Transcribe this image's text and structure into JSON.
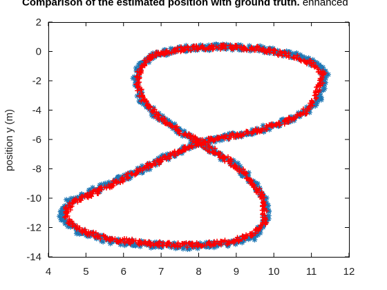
{
  "chart_data": {
    "type": "scatter",
    "title_bold": "Comparison of the estimated position with ground truth.",
    "title_normal": " enhanced",
    "xlabel": "",
    "ylabel": "position y (m)",
    "xlim": [
      4,
      12
    ],
    "ylim": [
      -14,
      2
    ],
    "xticks": [
      "4",
      "5",
      "6",
      "7",
      "8",
      "9",
      "10",
      "11",
      "12"
    ],
    "yticks": [
      "2",
      "0",
      "-2",
      "-4",
      "-6",
      "-8",
      "-10",
      "-12",
      "-14"
    ],
    "grid": false,
    "series": [
      {
        "color": "#1f77b4",
        "marker": "star",
        "points": [
          [
            8.0,
            -6.2
          ],
          [
            8.6,
            -5.9
          ],
          [
            9.4,
            -5.5
          ],
          [
            10.2,
            -4.9
          ],
          [
            10.8,
            -4.2
          ],
          [
            11.2,
            -3.2
          ],
          [
            11.4,
            -1.6
          ],
          [
            11.2,
            -0.9
          ],
          [
            10.6,
            -0.3
          ],
          [
            9.6,
            0.2
          ],
          [
            8.6,
            0.3
          ],
          [
            7.6,
            0.2
          ],
          [
            6.8,
            -0.2
          ],
          [
            6.4,
            -1.0
          ],
          [
            6.3,
            -2.2
          ],
          [
            6.5,
            -3.4
          ],
          [
            7.0,
            -4.6
          ],
          [
            7.6,
            -5.6
          ],
          [
            8.0,
            -6.2
          ],
          [
            8.4,
            -6.8
          ],
          [
            9.0,
            -7.8
          ],
          [
            9.5,
            -9.0
          ],
          [
            9.8,
            -10.3
          ],
          [
            9.8,
            -11.6
          ],
          [
            9.5,
            -12.6
          ],
          [
            8.8,
            -13.1
          ],
          [
            7.8,
            -13.3
          ],
          [
            6.8,
            -13.2
          ],
          [
            5.6,
            -12.9
          ],
          [
            4.8,
            -12.3
          ],
          [
            4.4,
            -11.5
          ],
          [
            4.3,
            -10.9
          ],
          [
            4.6,
            -10.2
          ],
          [
            5.4,
            -9.3
          ],
          [
            6.6,
            -7.9
          ],
          [
            7.4,
            -6.9
          ],
          [
            8.0,
            -6.2
          ]
        ]
      },
      {
        "color": "#ff0000",
        "marker": "plus",
        "points": [
          [
            8.0,
            -6.2
          ],
          [
            8.6,
            -5.9
          ],
          [
            9.4,
            -5.5
          ],
          [
            10.2,
            -4.9
          ],
          [
            10.8,
            -4.2
          ],
          [
            11.1,
            -3.2
          ],
          [
            11.3,
            -1.6
          ],
          [
            11.1,
            -0.9
          ],
          [
            10.5,
            -0.3
          ],
          [
            9.6,
            0.2
          ],
          [
            8.6,
            0.3
          ],
          [
            7.6,
            0.2
          ],
          [
            6.8,
            -0.2
          ],
          [
            6.45,
            -1.0
          ],
          [
            6.35,
            -2.2
          ],
          [
            6.55,
            -3.4
          ],
          [
            7.0,
            -4.6
          ],
          [
            7.6,
            -5.6
          ],
          [
            8.0,
            -6.2
          ],
          [
            8.4,
            -6.8
          ],
          [
            9.0,
            -7.8
          ],
          [
            9.45,
            -9.0
          ],
          [
            9.75,
            -10.3
          ],
          [
            9.75,
            -11.6
          ],
          [
            9.45,
            -12.5
          ],
          [
            8.8,
            -13.0
          ],
          [
            7.8,
            -13.2
          ],
          [
            6.8,
            -13.1
          ],
          [
            5.6,
            -12.8
          ],
          [
            4.9,
            -12.2
          ],
          [
            4.5,
            -11.5
          ],
          [
            4.45,
            -10.9
          ],
          [
            4.7,
            -10.2
          ],
          [
            5.5,
            -9.3
          ],
          [
            6.6,
            -7.9
          ],
          [
            7.4,
            -6.9
          ],
          [
            8.0,
            -6.2
          ]
        ]
      }
    ]
  }
}
